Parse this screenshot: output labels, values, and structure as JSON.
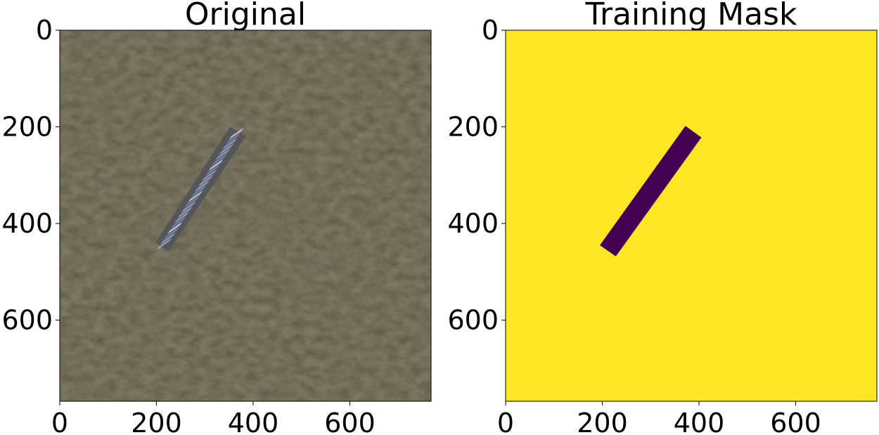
{
  "figure": {
    "panels": [
      {
        "title": "Original",
        "kind": "satellite-image",
        "xlim": [
          0,
          768
        ],
        "ylim": [
          768,
          0
        ],
        "xticks": [
          0,
          200,
          400,
          600
        ],
        "yticks": [
          0,
          200,
          400,
          600
        ],
        "colors": {
          "water": "#2b281e",
          "water_light": "#3a3628",
          "ship_hull": "#55565a",
          "ship_containers": "#8fa6d6"
        }
      },
      {
        "title": "Training Mask",
        "kind": "mask",
        "xlim": [
          0,
          768
        ],
        "ylim": [
          768,
          0
        ],
        "xticks": [
          0,
          200,
          400,
          600
        ],
        "yticks": [
          0,
          200,
          400,
          600
        ],
        "colors": {
          "background": "#fde725",
          "object": "#440154"
        },
        "object_polygon": [
          [
            372,
            198
          ],
          [
            405,
            222
          ],
          [
            228,
            468
          ],
          [
            195,
            445
          ]
        ]
      }
    ]
  }
}
